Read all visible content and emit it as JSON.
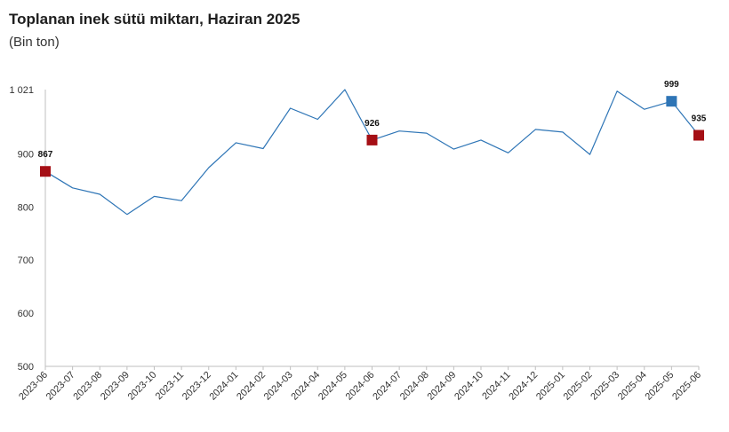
{
  "colors": {
    "line": "#2e75b6",
    "marker_red": "#a50f15",
    "marker_blue": "#2e75b6",
    "axis": "#bfbfbf"
  },
  "chart_data": {
    "type": "line",
    "title": "Toplanan inek sütü miktarı, Haziran 2025",
    "subtitle": "(Bin ton)",
    "xlabel": "",
    "ylabel": "",
    "ylim": [
      500,
      1021
    ],
    "yticks": [
      500,
      600,
      700,
      800,
      900,
      1021
    ],
    "ytick_labels": [
      "500",
      "600",
      "700",
      "800",
      "900",
      "1 021"
    ],
    "categories": [
      "2023-06",
      "2023-07",
      "2023-08",
      "2023-09",
      "2023-10",
      "2023-11",
      "2023-12",
      "2024-01",
      "2024-02",
      "2024-03",
      "2024-04",
      "2024-05",
      "2024-06",
      "2024-07",
      "2024-08",
      "2024-09",
      "2024-10",
      "2024-11",
      "2024-12",
      "2025-01",
      "2025-02",
      "2025-03",
      "2025-04",
      "2025-05",
      "2025-06"
    ],
    "series": [
      {
        "values": [
          867,
          836,
          824,
          786,
          820,
          812,
          874,
          921,
          910,
          986,
          965,
          1021,
          926,
          943,
          939,
          909,
          926,
          902,
          946,
          941,
          899,
          1018,
          984,
          999,
          935
        ]
      }
    ],
    "highlight_points": [
      {
        "index": 0,
        "label": "867",
        "color": "red"
      },
      {
        "index": 12,
        "label": "926",
        "color": "red"
      },
      {
        "index": 23,
        "label": "999",
        "color": "blue"
      },
      {
        "index": 24,
        "label": "935",
        "color": "red"
      }
    ],
    "grid": false,
    "legend": "none"
  }
}
